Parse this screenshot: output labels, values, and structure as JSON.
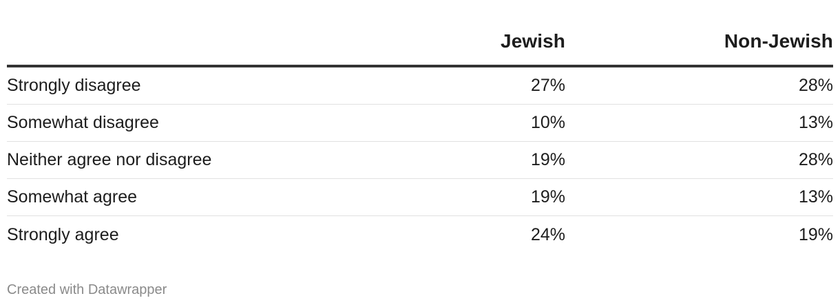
{
  "chart_data": {
    "type": "table",
    "columns": [
      "Jewish",
      "Non-Jewish"
    ],
    "rows": [
      {
        "label": "Strongly disagree",
        "values": [
          "27%",
          "28%"
        ]
      },
      {
        "label": "Somewhat disagree",
        "values": [
          "10%",
          "13%"
        ]
      },
      {
        "label": "Neither agree nor disagree",
        "values": [
          "19%",
          "28%"
        ]
      },
      {
        "label": "Somewhat agree",
        "values": [
          "19%",
          "13%"
        ]
      },
      {
        "label": "Strongly agree",
        "values": [
          "24%",
          "19%"
        ]
      }
    ]
  },
  "footer": {
    "credit": "Created with Datawrapper"
  },
  "colors": {
    "text": "#1d1d1d",
    "header_rule": "#333333",
    "row_divider": "#e1e1e1",
    "footer_text": "#8a8a8a"
  }
}
